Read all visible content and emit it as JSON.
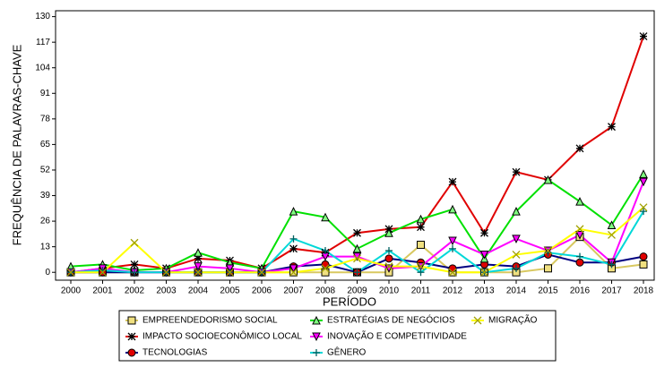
{
  "chart_data": {
    "type": "line",
    "x_label": "PERÍODO",
    "y_label": "FREQUÊNCIA DE PALAVRAS-CHAVE",
    "categories": [
      "2000",
      "2001",
      "2002",
      "2003",
      "2004",
      "2005",
      "2006",
      "2007",
      "2008",
      "2009",
      "2010",
      "2011",
      "2012",
      "2013",
      "2014",
      "2015",
      "2016",
      "2017",
      "2018"
    ],
    "ylim": [
      -4,
      133
    ],
    "yticks": [
      0,
      13,
      26,
      39,
      52,
      65,
      78,
      91,
      104,
      117,
      130
    ],
    "series": [
      {
        "name": "EMPREENDEDORISMO SOCIAL",
        "color": "#d8c860",
        "marker": "square",
        "marker_color": "#f0e080",
        "values": [
          0,
          0,
          0,
          0,
          0,
          0,
          0,
          0,
          0,
          0,
          0,
          14,
          0,
          0,
          0,
          2,
          18,
          2,
          4
        ]
      },
      {
        "name": "IMPACTO SOCIOECONÔMICO LOCAL",
        "color": "#e00000",
        "marker": "star",
        "marker_color": "#000000",
        "values": [
          0,
          2,
          4,
          2,
          7,
          6,
          2,
          12,
          10,
          20,
          22,
          23,
          46,
          20,
          51,
          47,
          63,
          74,
          120
        ]
      },
      {
        "name": "TECNOLOGIAS",
        "color": "#000080",
        "marker": "circle",
        "marker_color": "#e00000",
        "values": [
          0,
          0,
          0,
          0,
          0,
          0,
          0,
          3,
          4,
          0,
          7,
          5,
          2,
          4,
          3,
          9,
          5,
          5,
          8
        ]
      },
      {
        "name": "ESTRATÉGIAS DE NEGÓCIOS",
        "color": "#00e000",
        "marker": "triangle",
        "marker_color": "#80ff80",
        "values": [
          3,
          4,
          1,
          2,
          10,
          5,
          2,
          31,
          28,
          12,
          20,
          27,
          32,
          7,
          31,
          47,
          36,
          24,
          50
        ]
      },
      {
        "name": "INOVAÇÃO E COMPETITIVIDADE",
        "color": "#ff00ff",
        "marker": "triangle-down",
        "marker_color": "#ff00ff",
        "values": [
          0,
          2,
          0,
          0,
          3,
          2,
          0,
          2,
          8,
          8,
          2,
          3,
          16,
          9,
          17,
          11,
          19,
          5,
          46
        ]
      },
      {
        "name": "GÊNERO",
        "color": "#00d8d8",
        "marker": "plus",
        "marker_color": "#006060",
        "values": [
          0,
          1,
          0,
          0,
          0,
          0,
          0,
          17,
          11,
          0,
          11,
          0,
          12,
          0,
          2,
          10,
          8,
          4,
          31
        ]
      },
      {
        "name": "MIGRAÇÃO",
        "color": "#ffff00",
        "marker": "x",
        "marker_color": "#a0a000",
        "values": [
          0,
          0,
          15,
          0,
          0,
          0,
          0,
          0,
          2,
          7,
          3,
          3,
          0,
          0,
          9,
          11,
          22,
          19,
          33
        ]
      }
    ]
  }
}
